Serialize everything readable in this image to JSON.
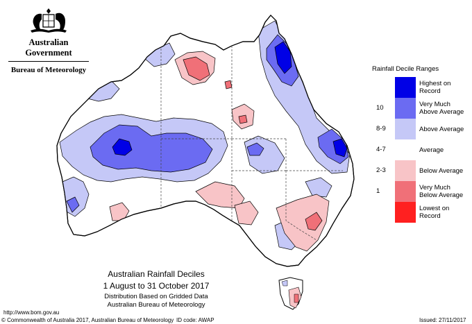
{
  "header": {
    "government": "Australian Government",
    "bureau": "Bureau of Meteorology",
    "logo_icon": "coat-of-arms-icon"
  },
  "legend": {
    "title": "Rainfall Decile Ranges",
    "items": [
      {
        "code": "",
        "label": "Highest on Record",
        "color": "#0000e6"
      },
      {
        "code": "10",
        "label": "Very Much Above Average",
        "color": "#6b6bf2"
      },
      {
        "code": "8-9",
        "label": "Above Average",
        "color": "#c5c8f7"
      },
      {
        "code": "4-7",
        "label": "Average",
        "color": "#ffffff"
      },
      {
        "code": "2-3",
        "label": "Below Average",
        "color": "#f8c4c7"
      },
      {
        "code": "1",
        "label": "Very Much Below Average",
        "color": "#f07078"
      },
      {
        "code": "",
        "label": "Lowest on Record",
        "color": "#ff2020"
      }
    ]
  },
  "caption": {
    "title": "Australian Rainfall Deciles",
    "period": "1 August to 31 October 2017",
    "distribution": "Distribution Based on Gridded Data",
    "agency": "Australian Bureau of Meteorology"
  },
  "footer": {
    "url": "http://www.bom.gov.au",
    "copyright": "© Commonwealth of Australia 2017, Australian Bureau of Meteorology",
    "id_code": "ID code: AWAP",
    "issued": "Issued: 27/11/2017"
  }
}
